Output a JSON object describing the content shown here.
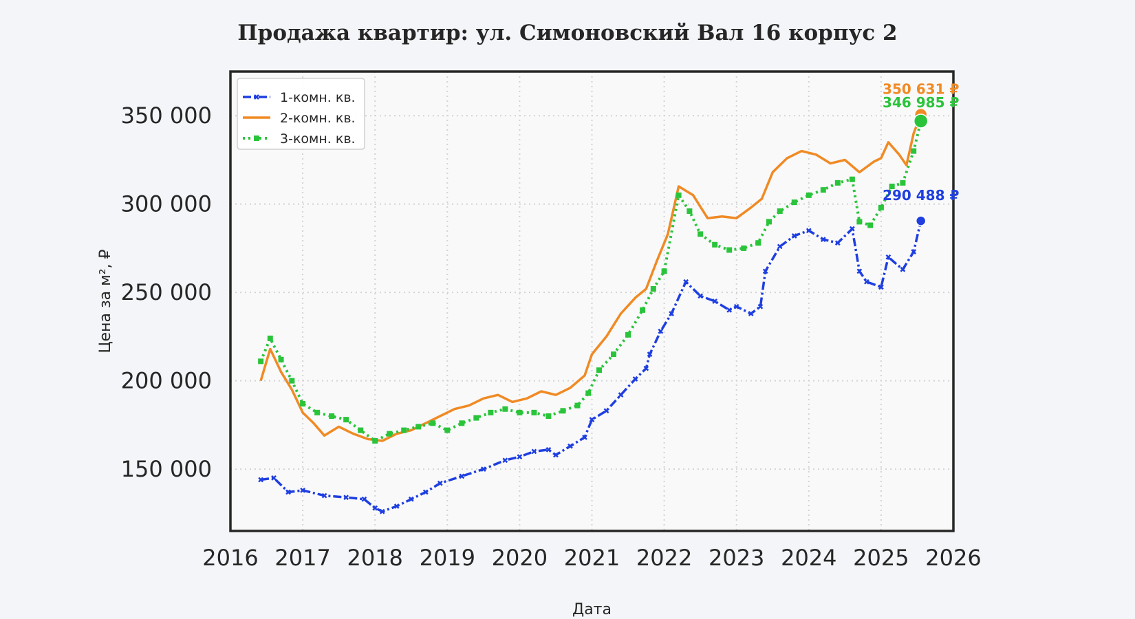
{
  "chart_data": {
    "type": "line",
    "title": "Продажа квартир: ул. Симоновский Вал 16 корпус 2",
    "xlabel": "Дата",
    "ylabel": "Цена за м², ₽",
    "xlim": [
      2016,
      2026
    ],
    "ylim": [
      115000,
      375000
    ],
    "x_ticks": [
      2016,
      2017,
      2018,
      2019,
      2020,
      2021,
      2022,
      2023,
      2024,
      2025,
      2026
    ],
    "x_tick_labels": [
      "2016",
      "2017",
      "2018",
      "2019",
      "2020",
      "2021",
      "2022",
      "2023",
      "2024",
      "2025",
      "2026"
    ],
    "y_ticks": [
      150000,
      200000,
      250000,
      300000,
      350000
    ],
    "y_tick_labels": [
      "150 000",
      "200 000",
      "250 000",
      "300 000",
      "350 000"
    ],
    "grid": true,
    "legend_position": "top-left",
    "series": [
      {
        "name": "1-комн. кв.",
        "color": "#1f3fe0",
        "style": "dash-dot with x markers",
        "end_label": "290 488 ₽",
        "end_value": 290488,
        "x": [
          2016.42,
          2016.6,
          2016.8,
          2017.0,
          2017.3,
          2017.6,
          2017.85,
          2018.0,
          2018.1,
          2018.3,
          2018.5,
          2018.7,
          2018.9,
          2019.2,
          2019.5,
          2019.8,
          2020.0,
          2020.2,
          2020.4,
          2020.5,
          2020.7,
          2020.9,
          2021.0,
          2021.2,
          2021.4,
          2021.6,
          2021.75,
          2021.8,
          2021.95,
          2022.1,
          2022.3,
          2022.5,
          2022.7,
          2022.9,
          2023.0,
          2023.2,
          2023.33,
          2023.4,
          2023.6,
          2023.8,
          2024.0,
          2024.2,
          2024.4,
          2024.6,
          2024.7,
          2024.8,
          2025.0,
          2025.1,
          2025.3,
          2025.45,
          2025.55
        ],
        "y": [
          144000,
          145000,
          137000,
          138000,
          135000,
          134000,
          133000,
          128000,
          126000,
          129000,
          133000,
          137000,
          142000,
          146000,
          150000,
          155000,
          157000,
          160000,
          161000,
          158000,
          163000,
          168000,
          178000,
          183000,
          192000,
          201000,
          207000,
          215000,
          228000,
          238000,
          256000,
          248000,
          245000,
          240000,
          242000,
          238000,
          242000,
          262000,
          276000,
          282000,
          285000,
          280000,
          278000,
          286000,
          262000,
          256000,
          253000,
          270000,
          263000,
          273000,
          290488
        ]
      },
      {
        "name": "2-комн. кв.",
        "color": "#f08a24",
        "style": "solid",
        "end_label": "350 631 ₽",
        "end_value": 350631,
        "x": [
          2016.42,
          2016.55,
          2016.7,
          2016.85,
          2017.0,
          2017.15,
          2017.3,
          2017.5,
          2017.7,
          2017.9,
          2018.1,
          2018.3,
          2018.5,
          2018.7,
          2018.9,
          2019.1,
          2019.3,
          2019.5,
          2019.7,
          2019.9,
          2020.1,
          2020.3,
          2020.5,
          2020.7,
          2020.9,
          2021.0,
          2021.2,
          2021.4,
          2021.6,
          2021.75,
          2021.9,
          2022.05,
          2022.2,
          2022.4,
          2022.6,
          2022.8,
          2023.0,
          2023.2,
          2023.35,
          2023.5,
          2023.7,
          2023.9,
          2024.1,
          2024.3,
          2024.5,
          2024.7,
          2024.9,
          2025.0,
          2025.1,
          2025.25,
          2025.35,
          2025.45,
          2025.55
        ],
        "y": [
          200000,
          218000,
          205000,
          195000,
          182000,
          176000,
          169000,
          174000,
          170000,
          167000,
          166000,
          170000,
          172000,
          176000,
          180000,
          184000,
          186000,
          190000,
          192000,
          188000,
          190000,
          194000,
          192000,
          196000,
          203000,
          215000,
          225000,
          238000,
          247000,
          252000,
          268000,
          283000,
          310000,
          305000,
          292000,
          293000,
          292000,
          298000,
          303000,
          318000,
          326000,
          330000,
          328000,
          323000,
          325000,
          318000,
          324000,
          326000,
          335000,
          328000,
          322000,
          340000,
          350631
        ]
      },
      {
        "name": "3-комн. кв.",
        "color": "#2ac43a",
        "style": "dotted with square markers",
        "end_label": "346 985 ₽",
        "end_value": 346985,
        "x": [
          2016.42,
          2016.55,
          2016.7,
          2016.85,
          2017.0,
          2017.2,
          2017.4,
          2017.6,
          2017.8,
          2018.0,
          2018.2,
          2018.4,
          2018.6,
          2018.8,
          2019.0,
          2019.2,
          2019.4,
          2019.6,
          2019.8,
          2020.0,
          2020.2,
          2020.4,
          2020.6,
          2020.8,
          2020.95,
          2021.1,
          2021.3,
          2021.5,
          2021.7,
          2021.85,
          2022.0,
          2022.2,
          2022.35,
          2022.5,
          2022.7,
          2022.9,
          2023.1,
          2023.3,
          2023.45,
          2023.6,
          2023.8,
          2024.0,
          2024.2,
          2024.4,
          2024.6,
          2024.7,
          2024.85,
          2025.0,
          2025.15,
          2025.3,
          2025.45,
          2025.55
        ],
        "y": [
          211000,
          224000,
          212000,
          200000,
          187000,
          182000,
          180000,
          178000,
          172000,
          166000,
          170000,
          172000,
          174000,
          176000,
          172000,
          176000,
          179000,
          182000,
          184000,
          182000,
          182000,
          180000,
          183000,
          186000,
          193000,
          206000,
          215000,
          226000,
          240000,
          252000,
          262000,
          305000,
          296000,
          283000,
          277000,
          274000,
          275000,
          278000,
          290000,
          296000,
          301000,
          305000,
          308000,
          312000,
          314000,
          290000,
          288000,
          298000,
          310000,
          312000,
          330000,
          346985
        ]
      }
    ]
  }
}
